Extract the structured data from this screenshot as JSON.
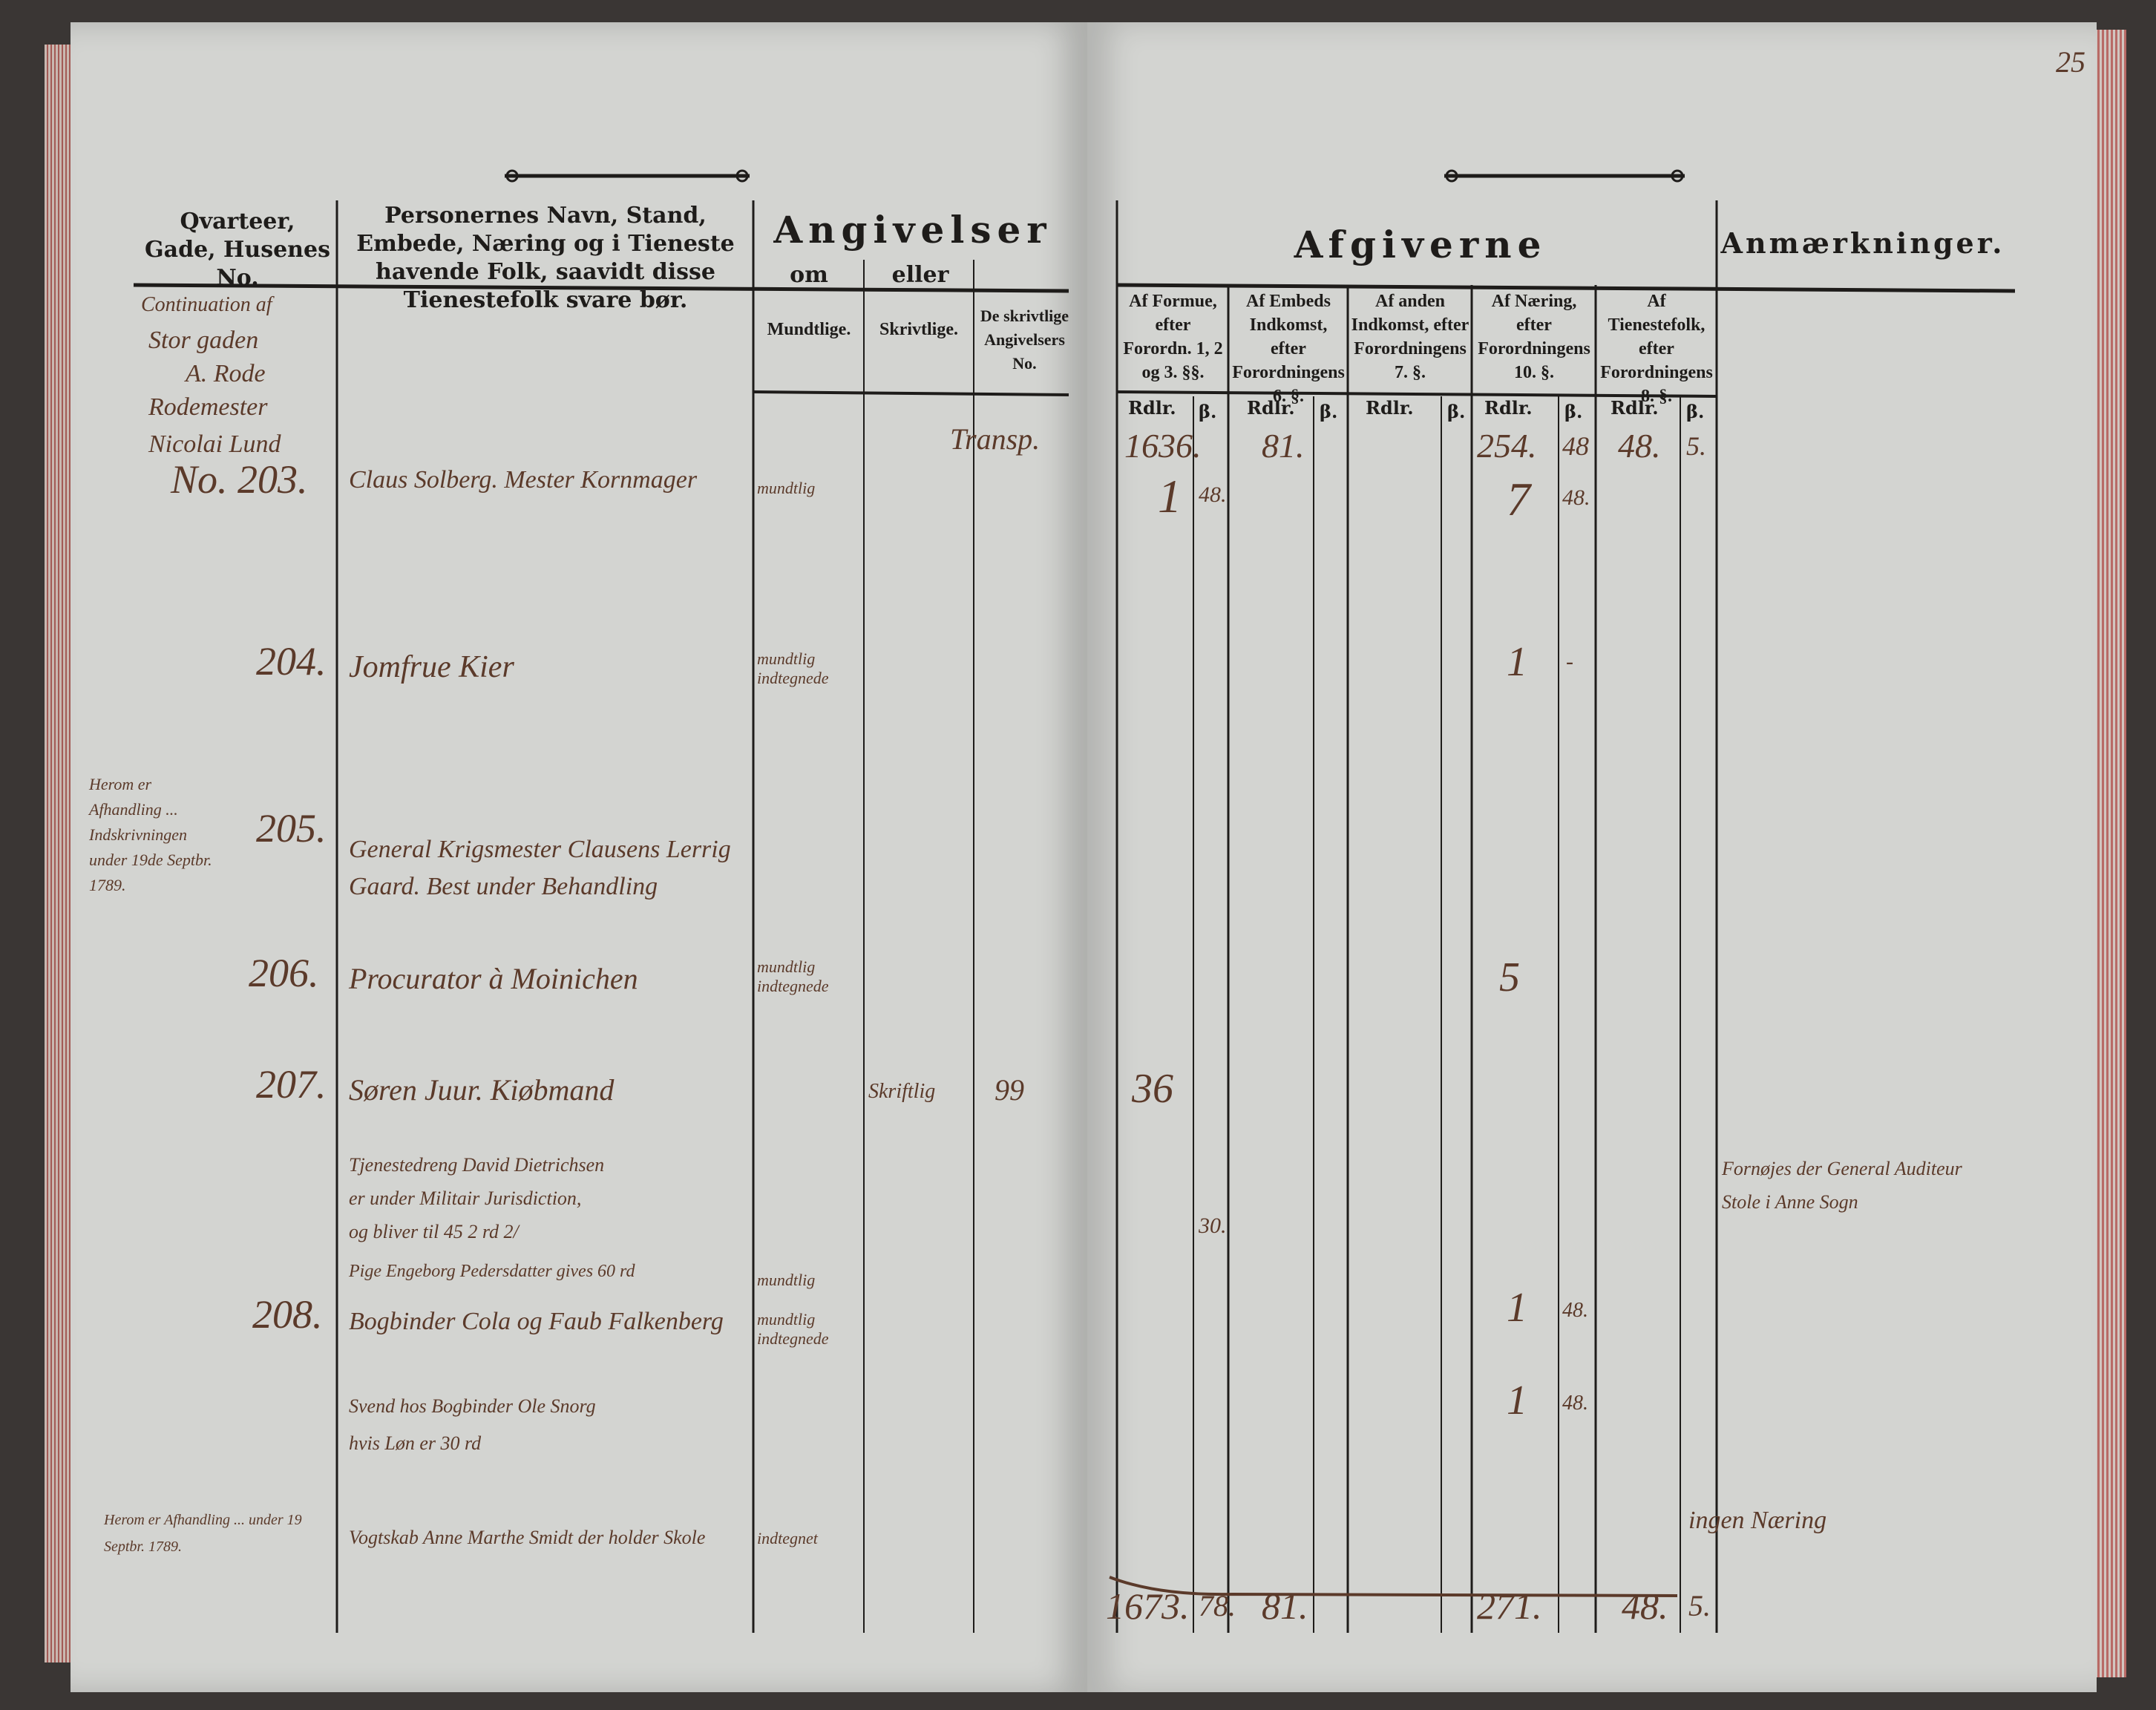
{
  "page_number": "25",
  "left_page": {
    "headers": {
      "quarter": "Qvarteer, Gade, Husenes No.",
      "persons": "Personernes Navn, Stand, Embede, Næring og i Tieneste havende Folk, saavidt disse Tienestefolk svare bør.",
      "angivelser": "Angivelser",
      "om": "om",
      "eller": "eller",
      "mundtlige": "Mundtlige.",
      "skrivtlige": "Skrivtlige.",
      "skrivtlige_no": "De skrivtlige Angivelsers No."
    },
    "heading_note": [
      "Continuation af",
      "Stor gaden",
      "A. Rode",
      "Rodemester",
      "Nicolai Lund"
    ],
    "transport": "Transp.",
    "entries": [
      {
        "no": "No. 203.",
        "name": "Claus Solberg. Mester Kornmager",
        "angivelse": "mundtlig"
      },
      {
        "no": "204.",
        "name": "Jomfrue Kier",
        "angivelse": "mundtlig indtegnede"
      },
      {
        "no": "205.",
        "margin": "Herom er Afhandling ... Indskrivningen under 19de Septbr. 1789.",
        "name": "General Krigsmester Clausens Lerrig Gaard.  Best under Behandling"
      },
      {
        "no": "206.",
        "name": "Procurator à Moinichen",
        "angivelse": "mundtlig indtegnede"
      },
      {
        "no": "207.",
        "name": "Søren Juur. Kiøbmand",
        "angivelse": "Skriftlig",
        "skrivtlig_no": "99"
      },
      {
        "name": "Tjenestedreng David Dietrichsen",
        "extra": [
          "er under Militair Jurisdiction,",
          "og bliver til 45 2 rd 2/"
        ]
      },
      {
        "name": "Pige Engeborg Pedersdatter gives 60 rd",
        "angivelse": "mundtlig"
      },
      {
        "no": "208.",
        "name": "Bogbinder Cola og Faub Falkenberg",
        "angivelse": "mundtlig indtegnede"
      },
      {
        "name": "Svend hos Bogbinder Ole Snorg",
        "extra": [
          "hvis Løn er 30 rd"
        ]
      },
      {
        "margin": "Herom er Afhandling ... under 19 Septbr. 1789.",
        "name": "Vogtskab Anne Marthe Smidt der holder Skole",
        "angivelse": "indtegnet"
      }
    ]
  },
  "right_page": {
    "headers": {
      "afgiverne": "Afgiverne",
      "anmaerkninger": "Anmærkninger.",
      "formue": "Af Formue, efter Forordn. 1, 2 og 3. §§.",
      "embeds": "Af Embeds Indkomst, efter Forordningens 6. §.",
      "anden": "Af anden Indkomst, efter Forordningens 7. §.",
      "naering": "Af Næring, efter Forordningens 10. §.",
      "tieneste": "Af Tienestefolk, efter Forordningens 8. §.",
      "rdlr": "Rdlr.",
      "skilling": "β."
    },
    "values": {
      "r1_formue": "1636.",
      "r1_embeds": "81.",
      "r1_naering": "254.",
      "r1_naering_s": "48",
      "r1_tieneste": "48.",
      "r1_tieneste_s": "5.",
      "r2_formue": "1",
      "r2_formue_s": "48.",
      "r2_naering": "7",
      "r2_naering_s": "48.",
      "e204_naering": "1",
      "e204_naering_s": "-",
      "e206_naering": "5",
      "e207_formue": "36",
      "pige_formue_s": "30.",
      "e208_naering": "1",
      "e208_naering_s": "48.",
      "svend_naering": "1",
      "svend_naering_s": "48."
    },
    "remarks": [
      "Fornøjes der General Auditeur",
      "Stole i Anne Sogn",
      "ingen Næring"
    ],
    "totals": {
      "formue": "1673.",
      "formue_s": "78.",
      "embeds": "81.",
      "naering": "271.",
      "tieneste": "48.",
      "tieneste_s": "5."
    }
  }
}
